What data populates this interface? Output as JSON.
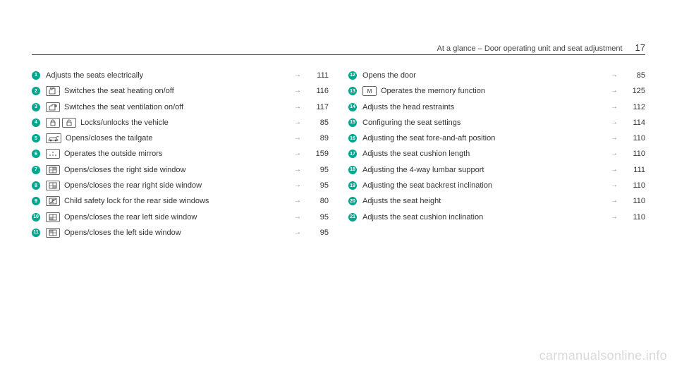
{
  "header": {
    "title": "At a glance – Door operating unit and seat adjustment",
    "page": "17"
  },
  "badge_color": "#00a78e",
  "arrow_glyph": "→",
  "watermark": "carmanualsonline.info",
  "left": [
    {
      "n": "1",
      "icons": [],
      "text": "Adjusts the seats electrically",
      "ref": "111"
    },
    {
      "n": "2",
      "icons": [
        "heat"
      ],
      "text": "Switches the seat heating on/off",
      "ref": "116"
    },
    {
      "n": "3",
      "icons": [
        "vent"
      ],
      "text": "Switches the seat ventilation on/off",
      "ref": "117"
    },
    {
      "n": "4",
      "icons": [
        "lock",
        "unlock"
      ],
      "text": "Locks/unlocks the vehicle",
      "ref": "85"
    },
    {
      "n": "5",
      "icons": [
        "tailgate"
      ],
      "text": "Opens/closes the tailgate",
      "ref": "89"
    },
    {
      "n": "6",
      "icons": [
        "mirror"
      ],
      "text": "Operates the outside mirrors",
      "ref": "159"
    },
    {
      "n": "7",
      "icons": [
        "win-r"
      ],
      "text": "Opens/closes the right side window",
      "ref": "95"
    },
    {
      "n": "8",
      "icons": [
        "win-rr"
      ],
      "text": "Opens/closes the rear right side window",
      "ref": "95"
    },
    {
      "n": "9",
      "icons": [
        "childlock"
      ],
      "text": "Child safety lock for the rear side windows",
      "ref": "80"
    },
    {
      "n": "10",
      "icons": [
        "win-rl"
      ],
      "text": "Opens/closes the rear left side window",
      "ref": "95"
    },
    {
      "n": "11",
      "icons": [
        "win-l"
      ],
      "text": "Opens/closes the left side window",
      "ref": "95"
    }
  ],
  "right": [
    {
      "n": "12",
      "icons": [],
      "text": "Opens the door",
      "ref": "85"
    },
    {
      "n": "13",
      "icons": [
        "memory"
      ],
      "text": "Operates the memory function",
      "ref": "125"
    },
    {
      "n": "14",
      "icons": [],
      "text": "Adjusts the head restraints",
      "ref": "112"
    },
    {
      "n": "15",
      "icons": [],
      "text": "Configuring the seat settings",
      "ref": "114"
    },
    {
      "n": "16",
      "icons": [],
      "text": "Adjusting the seat fore-and-aft position",
      "ref": "110"
    },
    {
      "n": "17",
      "icons": [],
      "text": "Adjusts the seat cushion length",
      "ref": "110"
    },
    {
      "n": "18",
      "icons": [],
      "text": "Adjusting the 4-way lumbar support",
      "ref": "111"
    },
    {
      "n": "19",
      "icons": [],
      "text": "Adjusting the seat backrest inclination",
      "ref": "110"
    },
    {
      "n": "20",
      "icons": [],
      "text": "Adjusts the seat height",
      "ref": "110"
    },
    {
      "n": "21",
      "icons": [],
      "text": "Adjusts the seat cushion inclination",
      "ref": "110"
    }
  ],
  "icon_svgs": {
    "heat": "<svg width='14' height='10' viewBox='0 0 14 10'><path d='M2 9 L2 5 Q2 3 4 3 L6 3 L6 1 L10 1 L10 9 Z' fill='none' stroke='#333' stroke-width='0.8'/><path d='M3 0 Q4 1 3 2 M5 0 Q6 1 5 2 M7 0 Q8 1 7 2' fill='none' stroke='#333' stroke-width='0.7'/></svg>",
    "vent": "<svg width='14' height='10' viewBox='0 0 14 10'><path d='M2 9 L2 5 Q2 3 4 3 L6 3 L6 1 L10 1 L10 9 Z' fill='none' stroke='#333' stroke-width='0.8'/><circle cx='11' cy='3' r='1.5' fill='none' stroke='#333' stroke-width='0.6'/><path d='M11 1.5 L11 4.5 M9.5 3 L12.5 3' stroke='#333' stroke-width='0.5'/></svg>",
    "lock": "<svg width='12' height='10' viewBox='0 0 12 10'><rect x='3' y='4' width='6' height='5' fill='none' stroke='#333' stroke-width='0.8'/><path d='M4 4 L4 2.5 Q4 1 6 1 Q8 1 8 2.5 L8 4' fill='none' stroke='#333' stroke-width='0.8'/></svg>",
    "unlock": "<svg width='12' height='10' viewBox='0 0 12 10'><rect x='3' y='4' width='6' height='5' fill='none' stroke='#333' stroke-width='0.8'/><path d='M4 4 L4 2.5 Q4 1 6 1 Q8 1 8 2.5' fill='none' stroke='#333' stroke-width='0.8'/></svg>",
    "tailgate": "<svg width='16' height='10' viewBox='0 0 16 10'><path d='M1 8 L3 4 L11 4 L14 8 Z' fill='none' stroke='#333' stroke-width='0.8'/><path d='M11 4 Q13 2 15 3' fill='none' stroke='#333' stroke-width='0.8'/><circle cx='4' cy='8' r='1' fill='none' stroke='#333' stroke-width='0.7'/><circle cx='11' cy='8' r='1' fill='none' stroke='#333' stroke-width='0.7'/></svg>",
    "mirror": "<svg width='14' height='10' viewBox='0 0 14 10'><circle cx='3' cy='7' r='0.8' fill='#333'/><circle cx='7' cy='3' r='0.8' fill='#333'/><circle cx='11' cy='7' r='0.8' fill='#333'/><circle cx='7' cy='7' r='0.8' fill='#333'/></svg>",
    "win-r": "<svg width='14' height='10' viewBox='0 0 14 10'><rect x='2' y='1' width='10' height='8' fill='none' stroke='#333' stroke-width='0.8'/><path d='M7 1 L7 9 M2 5 L12 5' stroke='#333' stroke-width='0.6'/><rect x='7.5' y='1.5' width='4' height='3' fill='#333' opacity='0.4'/></svg>",
    "win-rr": "<svg width='14' height='10' viewBox='0 0 14 10'><rect x='2' y='1' width='10' height='8' fill='none' stroke='#333' stroke-width='0.8'/><path d='M7 1 L7 9 M2 5 L12 5' stroke='#333' stroke-width='0.6'/><rect x='7.5' y='5.5' width='4' height='3' fill='#333' opacity='0.4'/></svg>",
    "childlock": "<svg width='14' height='10' viewBox='0 0 14 10'><rect x='2' y='1' width='10' height='8' fill='none' stroke='#333' stroke-width='0.8'/><circle cx='7' cy='3.5' r='1.2' fill='none' stroke='#333' stroke-width='0.7'/><path d='M5.5 8 Q7 5.5 8.5 8' fill='none' stroke='#333' stroke-width='0.7'/><line x1='3' y1='8' x2='11' y2='2' stroke='#333' stroke-width='0.8'/></svg>",
    "win-rl": "<svg width='14' height='10' viewBox='0 0 14 10'><rect x='2' y='1' width='10' height='8' fill='none' stroke='#333' stroke-width='0.8'/><path d='M7 1 L7 9 M2 5 L12 5' stroke='#333' stroke-width='0.6'/><rect x='2.5' y='5.5' width='4' height='3' fill='#333' opacity='0.4'/></svg>",
    "win-l": "<svg width='14' height='10' viewBox='0 0 14 10'><rect x='2' y='1' width='10' height='8' fill='none' stroke='#333' stroke-width='0.8'/><path d='M7 1 L7 9 M2 5 L12 5' stroke='#333' stroke-width='0.6'/><rect x='2.5' y='1.5' width='4' height='3' fill='#333' opacity='0.4'/></svg>",
    "memory": "<svg width='14' height='10' viewBox='0 0 14 10'><text x='7' y='8' text-anchor='middle' font-size='8' font-family='Arial' fill='#333'>M</text></svg>"
  }
}
